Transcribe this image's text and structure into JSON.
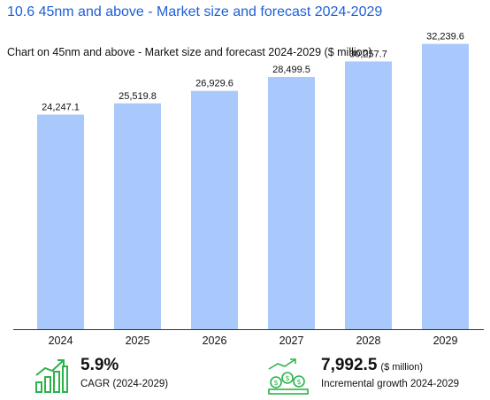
{
  "section_title": "10.6 45nm and above - Market size and forecast 2024-2029",
  "chart_subtitle": "Chart on 45nm and above - Market size and forecast 2024-2029 ($ million)",
  "chart_data": {
    "type": "bar",
    "categories": [
      "2024",
      "2025",
      "2026",
      "2027",
      "2028",
      "2029"
    ],
    "values": [
      24247.1,
      25519.8,
      26929.6,
      28499.5,
      30257.7,
      32239.6
    ],
    "value_labels": [
      "24,247.1",
      "25,519.8",
      "26,929.6",
      "28,499.5",
      "30,257.7",
      "32,239.6"
    ],
    "title": "Chart on 45nm and above - Market size and forecast 2024-2029 ($ million)",
    "xlabel": "",
    "ylabel": "",
    "ylim": [
      0,
      35000
    ],
    "grid": false,
    "legend": "none",
    "bar_color": "#a9c8fb"
  },
  "kpis": {
    "cagr": {
      "value": "5.9%",
      "label": "CAGR (2024-2029)",
      "icon": "growth-bars-icon"
    },
    "incremental": {
      "value": "7,992.5",
      "unit": "($ million)",
      "label": "Incremental growth 2024-2029",
      "icon": "money-growth-icon"
    }
  },
  "colors": {
    "title": "#1f5fd6",
    "bars": "#a9c8fb",
    "icon_green": "#2bb34a"
  }
}
